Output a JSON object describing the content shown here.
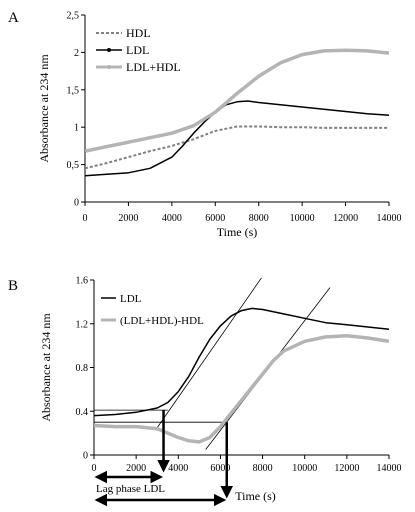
{
  "chart_data": [
    {
      "panel": "A",
      "type": "line",
      "xlabel": "Time (s)",
      "ylabel": "Absorbance at 234 nm",
      "xlim": [
        0,
        14000
      ],
      "ylim": [
        0,
        2.5
      ],
      "x_ticks": [
        "0",
        "2000",
        "4000",
        "6000",
        "8000",
        "10000",
        "12000",
        "14000"
      ],
      "y_ticks": [
        "0",
        "0,5",
        "1",
        "1,5",
        "2",
        "2,5"
      ],
      "legend_position": "top-left",
      "grid": false,
      "series": [
        {
          "name": "HDL",
          "style": "dashed",
          "color": "#808080",
          "x": [
            0,
            1000,
            2000,
            3000,
            4000,
            5000,
            6000,
            7000,
            8000,
            9000,
            10000,
            11000,
            12000,
            13000,
            14000
          ],
          "y": [
            0.45,
            0.52,
            0.6,
            0.68,
            0.75,
            0.84,
            0.95,
            1.01,
            1.01,
            1.0,
            1.0,
            0.99,
            0.99,
            0.99,
            0.99
          ]
        },
        {
          "name": "LDL",
          "style": "solid",
          "color": "#000000",
          "x": [
            0,
            1000,
            2000,
            3000,
            4000,
            4500,
            5000,
            5500,
            6000,
            6500,
            7000,
            7500,
            8000,
            9000,
            10000,
            11000,
            12000,
            13000,
            14000
          ],
          "y": [
            0.35,
            0.37,
            0.39,
            0.45,
            0.6,
            0.75,
            0.92,
            1.07,
            1.2,
            1.3,
            1.34,
            1.35,
            1.33,
            1.3,
            1.27,
            1.24,
            1.21,
            1.18,
            1.16
          ]
        },
        {
          "name": "LDL+HDL",
          "style": "thick",
          "color": "#b4b4b4",
          "x": [
            0,
            1000,
            2000,
            3000,
            4000,
            5000,
            6000,
            7000,
            8000,
            9000,
            10000,
            11000,
            12000,
            13000,
            14000
          ],
          "y": [
            0.68,
            0.74,
            0.8,
            0.86,
            0.92,
            1.02,
            1.2,
            1.45,
            1.68,
            1.86,
            1.97,
            2.02,
            2.03,
            2.02,
            1.99
          ]
        }
      ]
    },
    {
      "panel": "B",
      "type": "line",
      "xlabel": "Time (s)",
      "ylabel": "Absorbance at 234 nm",
      "xlim": [
        0,
        14000
      ],
      "ylim": [
        0,
        1.6
      ],
      "x_ticks": [
        "0",
        "2000",
        "4000",
        "6000",
        "8000",
        "10000",
        "12000",
        "14000"
      ],
      "y_ticks": [
        "0",
        "0.4",
        "0.8",
        "1.2",
        "1.6"
      ],
      "legend_position": "top-left",
      "grid": false,
      "series": [
        {
          "name": "LDL",
          "style": "solid",
          "color": "#000000",
          "x": [
            0,
            1000,
            2000,
            3000,
            3500,
            4000,
            4500,
            5000,
            5500,
            6000,
            6500,
            7000,
            7500,
            8000,
            9000,
            10000,
            11000,
            12000,
            13000,
            14000
          ],
          "y": [
            0.36,
            0.37,
            0.39,
            0.43,
            0.48,
            0.58,
            0.72,
            0.9,
            1.06,
            1.18,
            1.27,
            1.32,
            1.34,
            1.33,
            1.29,
            1.25,
            1.21,
            1.19,
            1.17,
            1.15
          ]
        },
        {
          "name": "(LDL+HDL)-HDL",
          "style": "thick",
          "color": "#b4b4b4",
          "x": [
            0,
            1000,
            2000,
            3000,
            3500,
            4000,
            4500,
            5000,
            5500,
            6000,
            6500,
            7000,
            7500,
            8000,
            8500,
            9000,
            10000,
            11000,
            12000,
            13000,
            14000
          ],
          "y": [
            0.27,
            0.26,
            0.26,
            0.24,
            0.2,
            0.16,
            0.13,
            0.12,
            0.16,
            0.26,
            0.38,
            0.5,
            0.62,
            0.74,
            0.86,
            0.95,
            1.04,
            1.08,
            1.09,
            1.07,
            1.04
          ]
        }
      ],
      "tangent_lines": [
        {
          "x": [
            3000,
            8600
          ],
          "y": [
            0.25,
            1.8
          ]
        },
        {
          "x": [
            5300,
            11200
          ],
          "y": [
            0.05,
            1.53
          ]
        }
      ],
      "baselines": [
        {
          "x": [
            0,
            3500
          ],
          "y": [
            0.41,
            0.41
          ]
        },
        {
          "x": [
            0,
            6300
          ],
          "y": [
            0.3,
            0.3
          ]
        }
      ],
      "annotations": [
        {
          "text": "Lag phase LDL",
          "x": 3300
        },
        {
          "text": "",
          "x": 6300
        }
      ]
    }
  ],
  "labels": {
    "panel_a": "A",
    "panel_b": "B"
  }
}
